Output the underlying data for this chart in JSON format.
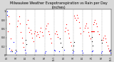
{
  "title": "Milwaukee Weather Evapotranspiration vs Rain per Day (Inches)",
  "title_fontsize": 3.5,
  "background_color": "#d8d8d8",
  "plot_bg": "#ffffff",
  "red_color": "#ff0000",
  "blue_color": "#0000ff",
  "black_color": "#000000",
  "ylim": [
    0.0,
    1.05
  ],
  "xlim": [
    0,
    22
  ],
  "section_dividers_x": [
    2,
    4,
    6,
    8,
    10,
    12,
    14,
    16,
    18,
    20
  ],
  "red_segments": [
    [
      [
        0.2,
        0.55
      ],
      [
        0.4,
        0.88
      ],
      [
        0.6,
        0.72
      ],
      [
        0.8,
        0.38
      ],
      [
        1.0,
        0.12
      ]
    ],
    [
      [
        2.2,
        0.65
      ],
      [
        2.4,
        0.78
      ],
      [
        2.6,
        0.88
      ],
      [
        2.8,
        0.72
      ],
      [
        3.0,
        0.52
      ],
      [
        3.2,
        0.4
      ],
      [
        3.4,
        0.28
      ],
      [
        3.6,
        0.18
      ],
      [
        3.8,
        0.12
      ]
    ],
    [
      [
        4.2,
        0.7
      ],
      [
        4.4,
        0.8
      ],
      [
        4.6,
        0.62
      ],
      [
        4.8,
        0.52
      ],
      [
        5.0,
        0.58
      ],
      [
        5.2,
        0.5
      ],
      [
        5.4,
        0.4
      ],
      [
        5.6,
        0.32
      ],
      [
        5.8,
        0.5
      ],
      [
        6.0,
        0.55
      ]
    ],
    [
      [
        6.2,
        0.45
      ],
      [
        6.4,
        0.52
      ],
      [
        6.6,
        0.48
      ],
      [
        6.8,
        0.42
      ],
      [
        7.0,
        0.55
      ],
      [
        7.2,
        0.62
      ],
      [
        7.4,
        0.52
      ],
      [
        7.6,
        0.45
      ]
    ],
    [
      [
        8.2,
        0.6
      ],
      [
        8.4,
        0.68
      ],
      [
        8.6,
        0.72
      ],
      [
        8.8,
        0.55
      ],
      [
        9.0,
        0.48
      ],
      [
        9.2,
        0.38
      ],
      [
        9.4,
        0.28
      ]
    ],
    [
      [
        10.2,
        0.5
      ],
      [
        10.4,
        0.55
      ],
      [
        10.6,
        0.48
      ],
      [
        10.8,
        0.42
      ]
    ],
    [
      [
        12.2,
        0.55
      ],
      [
        12.4,
        0.62
      ],
      [
        12.6,
        0.7
      ],
      [
        12.8,
        0.58
      ],
      [
        13.0,
        0.5
      ],
      [
        13.2,
        0.4
      ],
      [
        13.4,
        0.3
      ],
      [
        13.6,
        0.22
      ]
    ],
    [
      [
        14.2,
        0.9
      ],
      [
        14.4,
        0.85
      ],
      [
        14.6,
        0.8
      ],
      [
        14.8,
        0.92
      ],
      [
        15.0,
        0.85
      ],
      [
        15.2,
        0.75
      ],
      [
        15.4,
        0.62
      ],
      [
        15.6,
        0.5
      ]
    ],
    [
      [
        16.2,
        0.55
      ],
      [
        16.4,
        0.62
      ],
      [
        16.6,
        0.68
      ],
      [
        16.8,
        0.72
      ],
      [
        17.0,
        0.62
      ],
      [
        17.2,
        0.52
      ],
      [
        17.4,
        0.45
      ],
      [
        17.6,
        0.38
      ]
    ],
    [
      [
        18.2,
        0.7
      ],
      [
        18.4,
        0.75
      ],
      [
        18.6,
        0.8
      ],
      [
        18.8,
        0.72
      ],
      [
        19.0,
        0.65
      ],
      [
        19.2,
        0.55
      ],
      [
        19.4,
        0.48
      ]
    ],
    [
      [
        20.2,
        0.35
      ],
      [
        20.4,
        0.4
      ],
      [
        20.6,
        0.45
      ],
      [
        20.8,
        0.38
      ],
      [
        21.0,
        0.3
      ],
      [
        21.2,
        0.22
      ],
      [
        21.4,
        0.15
      ],
      [
        21.6,
        0.1
      ]
    ]
  ],
  "blue_dots": [
    [
      0.05,
      0.92
    ],
    [
      0.1,
      1.0
    ],
    [
      0.5,
      0.15
    ],
    [
      0.9,
      0.08
    ],
    [
      1.4,
      0.3
    ],
    [
      1.7,
      0.05
    ],
    [
      2.05,
      0.08
    ],
    [
      3.9,
      0.12
    ],
    [
      4.05,
      0.05
    ],
    [
      6.05,
      0.08
    ],
    [
      6.15,
      0.12
    ],
    [
      8.05,
      0.05
    ],
    [
      8.15,
      0.08
    ],
    [
      10.05,
      0.12
    ],
    [
      10.15,
      0.1
    ],
    [
      11.05,
      0.08
    ],
    [
      12.05,
      0.12
    ],
    [
      13.9,
      0.05
    ],
    [
      14.05,
      0.08
    ],
    [
      15.9,
      0.1
    ],
    [
      16.05,
      0.05
    ],
    [
      17.9,
      0.08
    ],
    [
      18.05,
      0.1
    ],
    [
      19.9,
      0.05
    ],
    [
      20.05,
      0.08
    ],
    [
      21.7,
      0.12
    ],
    [
      21.9,
      0.05
    ]
  ],
  "black_dots": [
    [
      1.1,
      0.08
    ],
    [
      1.9,
      0.12
    ],
    [
      3.95,
      0.35
    ],
    [
      4.1,
      0.25
    ],
    [
      11.2,
      0.38
    ],
    [
      11.4,
      0.28
    ],
    [
      11.6,
      0.18
    ],
    [
      13.95,
      0.12
    ],
    [
      14.05,
      0.22
    ],
    [
      14.15,
      0.3
    ],
    [
      17.95,
      0.42
    ],
    [
      18.0,
      0.32
    ],
    [
      18.05,
      0.22
    ],
    [
      19.95,
      0.35
    ],
    [
      20.0,
      0.28
    ],
    [
      21.7,
      0.08
    ],
    [
      21.8,
      0.12
    ]
  ],
  "red_line_segments": [
    [
      [
        17.8,
        0.55
      ],
      [
        18.0,
        0.55
      ],
      [
        18.2,
        0.55
      ],
      [
        18.4,
        0.55
      ]
    ]
  ],
  "x_tick_positions": [
    0,
    2,
    4,
    6,
    8,
    10,
    12,
    14,
    16,
    18,
    20,
    22
  ],
  "x_tick_labels": [
    "1/1",
    "3/1",
    "5/1",
    "7/1",
    "9/1",
    "11/1",
    "1/1",
    "3/1",
    "5/1",
    "7/1",
    "9/1",
    "11/1"
  ],
  "y_tick_values": [
    0.0,
    0.2,
    0.4,
    0.6,
    0.8,
    1.0
  ],
  "y_tick_labels": [
    "0",
    "0.2",
    "0.4",
    "0.6",
    "0.8",
    "1"
  ]
}
